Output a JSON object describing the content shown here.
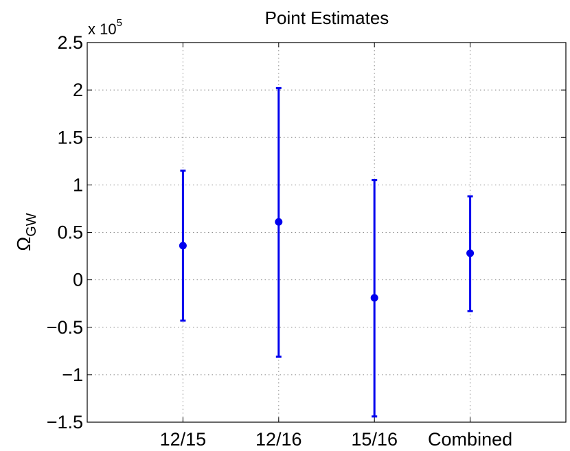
{
  "chart_data": {
    "type": "errorbar",
    "title": "Point Estimates",
    "ylabel": "Ω",
    "ylabel_subscript": "GW",
    "y_multiplier": "x 10",
    "y_multiplier_exponent": "5",
    "categories": [
      "12/15",
      "12/16",
      "15/16",
      "Combined"
    ],
    "x_range": [
      0,
      5
    ],
    "ylim": [
      -1.5,
      2.5
    ],
    "y_ticks": [
      -1.5,
      -1,
      -0.5,
      0,
      0.5,
      1,
      1.5,
      2,
      2.5
    ],
    "y_tick_labels": [
      "−1.5",
      "−1",
      "−0.5",
      "0",
      "0.5",
      "1",
      "1.5",
      "2",
      "2.5"
    ],
    "points": [
      {
        "category": "12/15",
        "x": 1,
        "value": 0.36,
        "lower": -0.43,
        "upper": 1.15
      },
      {
        "category": "12/16",
        "x": 2,
        "value": 0.61,
        "lower": -0.81,
        "upper": 2.02
      },
      {
        "category": "15/16",
        "x": 3,
        "value": -0.19,
        "lower": -1.44,
        "upper": 1.05
      },
      {
        "category": "Combined",
        "x": 4,
        "value": 0.28,
        "lower": -0.33,
        "upper": 0.88
      }
    ],
    "grid": true,
    "series_color": "#0000ee"
  }
}
